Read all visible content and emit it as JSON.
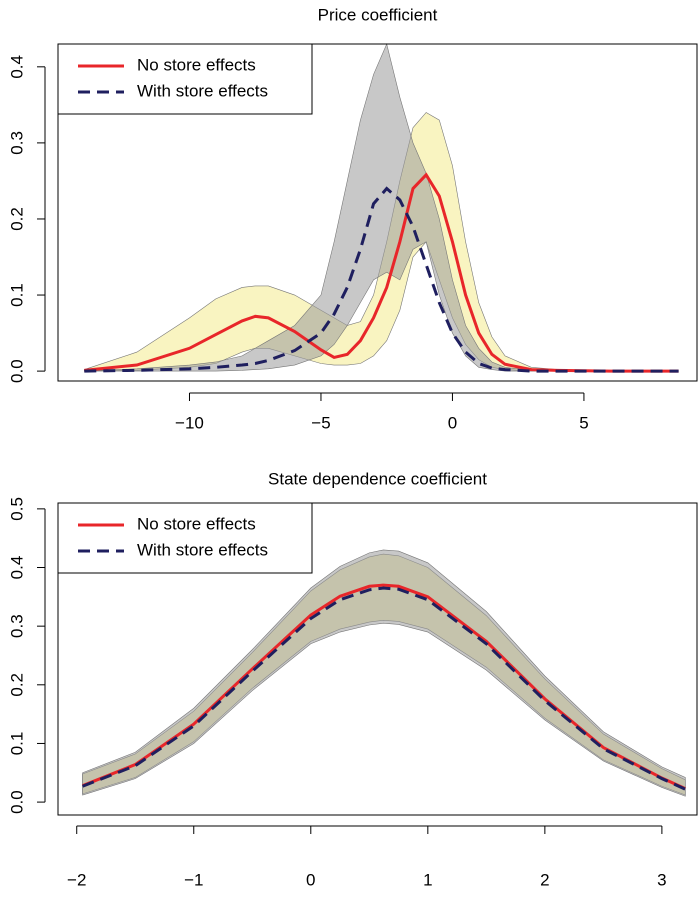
{
  "chart_data": [
    {
      "type": "line",
      "title": "Price coefficient",
      "legend": "top-left",
      "x": [
        -14,
        -12,
        -10,
        -9,
        -8,
        -7.5,
        -7,
        -6,
        -5,
        -4.5,
        -4,
        -3.5,
        -3,
        -2.5,
        -2,
        -1.5,
        -1,
        -0.5,
        0,
        0.5,
        1,
        1.5,
        2,
        3,
        4,
        6,
        8.6
      ],
      "series": [
        {
          "name": "No store effects",
          "color": "#e8262a",
          "dashed": false,
          "values": [
            0.001,
            0.008,
            0.03,
            0.048,
            0.066,
            0.072,
            0.07,
            0.052,
            0.028,
            0.018,
            0.022,
            0.04,
            0.07,
            0.11,
            0.17,
            0.24,
            0.258,
            0.23,
            0.17,
            0.1,
            0.05,
            0.022,
            0.009,
            0.002,
            0.001,
            0,
            0
          ]
        },
        {
          "name": "With store effects",
          "color": "#1f1f5f",
          "dashed": true,
          "values": [
            0,
            0.001,
            0.003,
            0.005,
            0.008,
            0.01,
            0.014,
            0.027,
            0.05,
            0.075,
            0.11,
            0.16,
            0.22,
            0.24,
            0.225,
            0.19,
            0.14,
            0.09,
            0.05,
            0.025,
            0.01,
            0.004,
            0.002,
            0,
            0,
            0,
            0
          ]
        }
      ],
      "bands": [
        {
          "color": "#f7f0a6",
          "upper": [
            0.002,
            0.025,
            0.07,
            0.095,
            0.11,
            0.112,
            0.112,
            0.1,
            0.08,
            0.07,
            0.06,
            0.065,
            0.1,
            0.17,
            0.25,
            0.32,
            0.34,
            0.33,
            0.27,
            0.17,
            0.09,
            0.045,
            0.02,
            0.005,
            0.002,
            0.001,
            0
          ],
          "lower": [
            0,
            0.001,
            0.005,
            0.01,
            0.025,
            0.03,
            0.03,
            0.02,
            0.01,
            0.008,
            0.008,
            0.01,
            0.02,
            0.04,
            0.08,
            0.15,
            0.17,
            0.12,
            0.07,
            0.035,
            0.015,
            0.005,
            0.002,
            0,
            0,
            0,
            0
          ]
        },
        {
          "color": "#9a9a9a",
          "upper": [
            0,
            0.003,
            0.008,
            0.012,
            0.02,
            0.03,
            0.04,
            0.06,
            0.1,
            0.17,
            0.25,
            0.33,
            0.39,
            0.43,
            0.36,
            0.3,
            0.26,
            0.2,
            0.12,
            0.06,
            0.03,
            0.012,
            0.005,
            0.001,
            0,
            0,
            0
          ],
          "lower": [
            0,
            0,
            0,
            0,
            0.001,
            0.002,
            0.003,
            0.008,
            0.02,
            0.035,
            0.06,
            0.09,
            0.12,
            0.13,
            0.12,
            0.16,
            0.17,
            0.1,
            0.05,
            0.02,
            0.005,
            0.002,
            0,
            0,
            0,
            0,
            0
          ]
        }
      ],
      "xlim": [
        -15,
        9.3
      ],
      "ylim": [
        -0.013,
        0.43
      ],
      "xticks": [
        {
          "value": -10,
          "label": "−10"
        },
        {
          "value": -5,
          "label": "−5"
        },
        0,
        5
      ],
      "yticks": [
        {
          "value": 0,
          "label": "0.0"
        },
        0.1,
        0.2,
        0.3,
        0.4
      ]
    },
    {
      "type": "line",
      "title": "State dependence coefficient",
      "legend": "top-left",
      "x": [
        -1.95,
        -1.5,
        -1,
        -0.5,
        0,
        0.25,
        0.5,
        0.62,
        0.75,
        1,
        1.5,
        2,
        2.5,
        3,
        3.2
      ],
      "series": [
        {
          "name": "No store effects",
          "color": "#e8262a",
          "dashed": false,
          "values": [
            0.028,
            0.064,
            0.133,
            0.227,
            0.319,
            0.351,
            0.368,
            0.37,
            0.368,
            0.35,
            0.274,
            0.176,
            0.093,
            0.041,
            0.023
          ]
        },
        {
          "name": "With store effects",
          "color": "#1f1f5f",
          "dashed": true,
          "values": [
            0.027,
            0.062,
            0.13,
            0.223,
            0.313,
            0.345,
            0.362,
            0.365,
            0.363,
            0.345,
            0.27,
            0.173,
            0.091,
            0.04,
            0.022
          ]
        }
      ],
      "bands": [
        {
          "color": "#f7f0a6",
          "upper": [
            0.048,
            0.082,
            0.155,
            0.255,
            0.36,
            0.396,
            0.418,
            0.423,
            0.42,
            0.4,
            0.318,
            0.21,
            0.116,
            0.057,
            0.038
          ],
          "lower": [
            0.014,
            0.042,
            0.103,
            0.194,
            0.274,
            0.295,
            0.307,
            0.31,
            0.308,
            0.295,
            0.23,
            0.143,
            0.072,
            0.027,
            0.012
          ]
        },
        {
          "color": "#9a9a9a",
          "upper": [
            0.05,
            0.085,
            0.16,
            0.26,
            0.365,
            0.402,
            0.425,
            0.43,
            0.428,
            0.408,
            0.325,
            0.215,
            0.12,
            0.06,
            0.042
          ],
          "lower": [
            0.012,
            0.04,
            0.1,
            0.19,
            0.27,
            0.29,
            0.302,
            0.305,
            0.303,
            0.29,
            0.225,
            0.14,
            0.07,
            0.025,
            0.01
          ]
        }
      ],
      "xlim": [
        -2.16,
        3.3
      ],
      "ylim": [
        -0.022,
        0.51
      ],
      "xticks": [
        {
          "value": -2,
          "label": "−2"
        },
        {
          "value": -1,
          "label": "−1"
        },
        0,
        1,
        2,
        3
      ],
      "yticks": [
        {
          "value": 0,
          "label": "0.0"
        },
        0.1,
        0.2,
        0.3,
        0.4,
        0.5
      ]
    }
  ]
}
